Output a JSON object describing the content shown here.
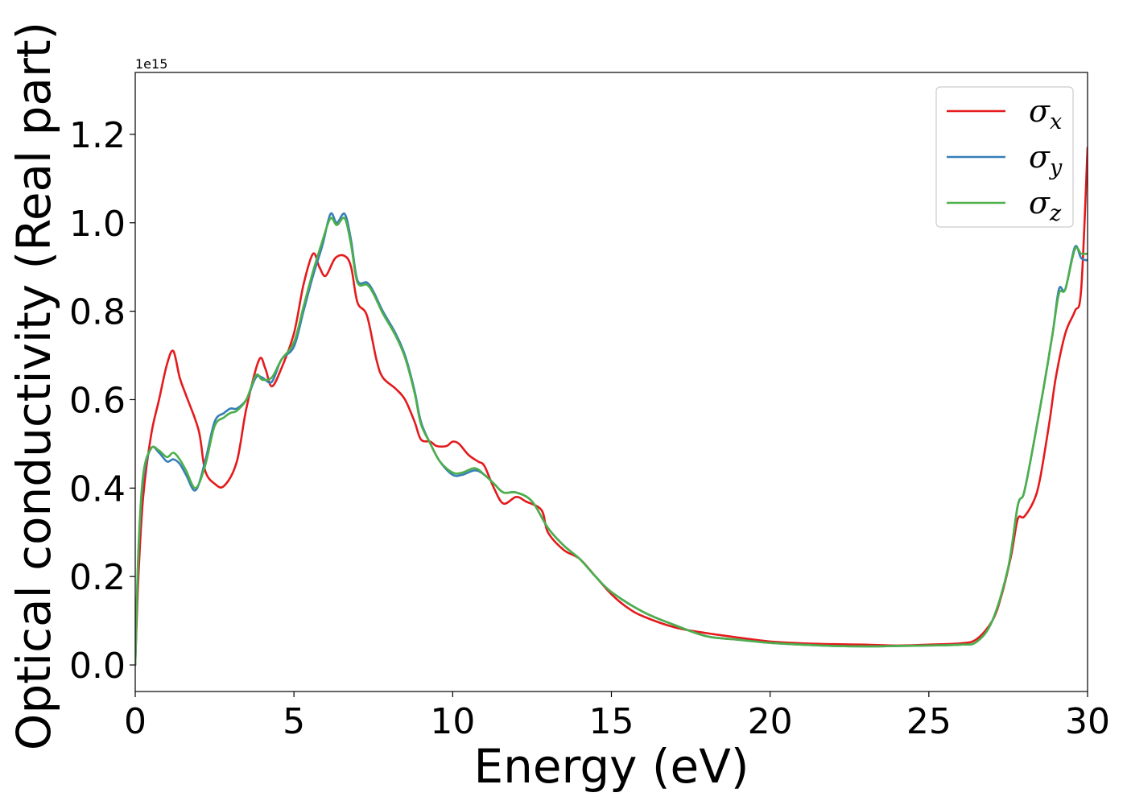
{
  "chart_data": {
    "type": "line",
    "title": "",
    "xlabel": "Energy (eV)",
    "ylabel": "Optical conductivity (Real part)",
    "y_offset_text": "1e15",
    "xlim": [
      0,
      30
    ],
    "ylim": [
      -0.06,
      1.34
    ],
    "y_multiplier": 1000000000000000.0,
    "xticks": [
      0,
      5,
      10,
      15,
      20,
      25,
      30
    ],
    "xtick_labels": [
      "0",
      "5",
      "10",
      "15",
      "20",
      "25",
      "30"
    ],
    "yticks": [
      0.0,
      0.2,
      0.4,
      0.6,
      0.8,
      1.0,
      1.2
    ],
    "ytick_labels": [
      "0.0",
      "0.2",
      "0.4",
      "0.6",
      "0.8",
      "1.0",
      "1.2"
    ],
    "grid": false,
    "legend_position": "top-right",
    "series": [
      {
        "name": "σx",
        "symbol": "σ",
        "subscript": "x",
        "color": "#e41a1c",
        "x": [
          0,
          0.1,
          0.25,
          0.5,
          0.75,
          1.0,
          1.2,
          1.4,
          1.6,
          2.0,
          2.2,
          2.5,
          2.8,
          3.2,
          3.5,
          3.9,
          4.1,
          4.3,
          4.6,
          5.0,
          5.3,
          5.6,
          5.8,
          6.0,
          6.3,
          6.6,
          6.8,
          7.0,
          7.3,
          7.6,
          7.8,
          8.2,
          8.5,
          8.8,
          9.0,
          9.3,
          9.5,
          9.8,
          10.0,
          10.2,
          10.5,
          10.8,
          11.0,
          11.3,
          11.6,
          12.0,
          12.3,
          12.8,
          13.0,
          13.5,
          14.0,
          14.5,
          15.0,
          15.5,
          16.0,
          17.0,
          18.0,
          19.0,
          20.0,
          21.0,
          22.0,
          23.0,
          24.0,
          25.0,
          26.0,
          26.5,
          27.0,
          27.3,
          27.6,
          27.8,
          28.0,
          28.3,
          28.5,
          28.8,
          29.0,
          29.3,
          29.6,
          29.8,
          30.0
        ],
        "y": [
          0.0,
          0.2,
          0.38,
          0.52,
          0.6,
          0.68,
          0.71,
          0.65,
          0.61,
          0.53,
          0.44,
          0.41,
          0.405,
          0.46,
          0.58,
          0.69,
          0.67,
          0.63,
          0.67,
          0.75,
          0.86,
          0.93,
          0.9,
          0.88,
          0.92,
          0.925,
          0.9,
          0.82,
          0.79,
          0.69,
          0.65,
          0.625,
          0.6,
          0.55,
          0.51,
          0.505,
          0.495,
          0.495,
          0.505,
          0.5,
          0.475,
          0.46,
          0.45,
          0.4,
          0.365,
          0.38,
          0.37,
          0.35,
          0.3,
          0.26,
          0.24,
          0.2,
          0.16,
          0.13,
          0.11,
          0.085,
          0.072,
          0.062,
          0.053,
          0.049,
          0.047,
          0.046,
          0.044,
          0.046,
          0.049,
          0.058,
          0.1,
          0.16,
          0.25,
          0.33,
          0.335,
          0.37,
          0.42,
          0.55,
          0.65,
          0.75,
          0.8,
          0.85,
          1.17
        ]
      },
      {
        "name": "σy",
        "symbol": "σ",
        "subscript": "y",
        "color": "#377eb8",
        "x": [
          0,
          0.1,
          0.25,
          0.5,
          0.75,
          1.0,
          1.2,
          1.4,
          1.6,
          1.9,
          2.2,
          2.5,
          2.8,
          3.0,
          3.2,
          3.5,
          3.8,
          4.0,
          4.3,
          4.6,
          5.0,
          5.3,
          5.6,
          5.9,
          6.15,
          6.35,
          6.6,
          6.8,
          7.0,
          7.3,
          7.5,
          7.8,
          8.2,
          8.5,
          8.8,
          9.0,
          9.3,
          9.6,
          10.0,
          10.3,
          10.7,
          11.0,
          11.3,
          11.6,
          12.0,
          12.5,
          13.0,
          13.5,
          14.0,
          14.5,
          15.0,
          16.0,
          17.0,
          18.0,
          19.0,
          20.0,
          21.0,
          22.0,
          23.0,
          24.0,
          25.0,
          26.0,
          26.5,
          27.0,
          27.5,
          27.8,
          28.0,
          28.3,
          28.6,
          28.9,
          29.1,
          29.3,
          29.6,
          29.8,
          30.0
        ],
        "y": [
          0.0,
          0.25,
          0.42,
          0.49,
          0.48,
          0.46,
          0.465,
          0.455,
          0.43,
          0.395,
          0.46,
          0.55,
          0.57,
          0.58,
          0.58,
          0.6,
          0.65,
          0.65,
          0.64,
          0.69,
          0.72,
          0.8,
          0.88,
          0.95,
          1.02,
          1.0,
          1.02,
          0.96,
          0.87,
          0.865,
          0.845,
          0.8,
          0.75,
          0.7,
          0.62,
          0.55,
          0.5,
          0.46,
          0.43,
          0.43,
          0.44,
          0.43,
          0.41,
          0.39,
          0.39,
          0.37,
          0.31,
          0.27,
          0.24,
          0.2,
          0.165,
          0.12,
          0.09,
          0.065,
          0.057,
          0.05,
          0.046,
          0.043,
          0.042,
          0.043,
          0.044,
          0.046,
          0.052,
          0.1,
          0.22,
          0.36,
          0.39,
          0.5,
          0.62,
          0.75,
          0.85,
          0.85,
          0.945,
          0.92,
          0.915
        ]
      },
      {
        "name": "σz",
        "symbol": "σ",
        "subscript": "z",
        "color": "#4daf4a",
        "x": [
          0,
          0.1,
          0.25,
          0.5,
          0.75,
          1.0,
          1.2,
          1.4,
          1.6,
          1.9,
          2.2,
          2.5,
          2.8,
          3.0,
          3.2,
          3.5,
          3.8,
          4.0,
          4.3,
          4.6,
          5.0,
          5.3,
          5.6,
          5.9,
          6.15,
          6.35,
          6.6,
          6.8,
          7.0,
          7.3,
          7.5,
          7.8,
          8.2,
          8.5,
          8.8,
          9.0,
          9.3,
          9.6,
          10.0,
          10.3,
          10.7,
          11.0,
          11.3,
          11.6,
          12.0,
          12.5,
          13.0,
          13.5,
          14.0,
          14.5,
          15.0,
          16.0,
          17.0,
          18.0,
          19.0,
          20.0,
          21.0,
          22.0,
          23.0,
          24.0,
          25.0,
          26.0,
          26.5,
          27.0,
          27.5,
          27.8,
          28.0,
          28.3,
          28.6,
          28.9,
          29.1,
          29.3,
          29.6,
          29.8,
          30.0
        ],
        "y": [
          0.0,
          0.26,
          0.43,
          0.49,
          0.485,
          0.47,
          0.48,
          0.465,
          0.44,
          0.4,
          0.45,
          0.54,
          0.56,
          0.57,
          0.575,
          0.6,
          0.655,
          0.645,
          0.65,
          0.69,
          0.73,
          0.81,
          0.89,
          0.96,
          1.01,
          0.995,
          1.01,
          0.95,
          0.865,
          0.86,
          0.84,
          0.795,
          0.745,
          0.695,
          0.615,
          0.545,
          0.5,
          0.46,
          0.435,
          0.435,
          0.445,
          0.43,
          0.41,
          0.39,
          0.39,
          0.37,
          0.31,
          0.27,
          0.24,
          0.2,
          0.165,
          0.12,
          0.09,
          0.065,
          0.057,
          0.05,
          0.046,
          0.043,
          0.042,
          0.043,
          0.044,
          0.046,
          0.052,
          0.1,
          0.22,
          0.36,
          0.39,
          0.5,
          0.62,
          0.75,
          0.84,
          0.85,
          0.94,
          0.93,
          0.93
        ]
      }
    ]
  }
}
